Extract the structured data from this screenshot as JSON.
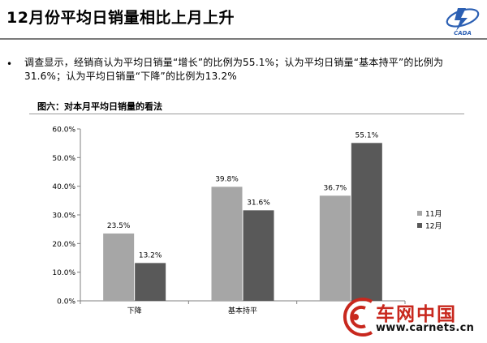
{
  "header": {
    "title": "12月份平均日销量相比上月上升"
  },
  "logo": {
    "text": "CADA"
  },
  "bullet": {
    "symbol": "•",
    "text": "调查显示，经销商认为平均日销量“增长”的比例为55.1%；认为平均日销量“基本持平”的比例为31.6%；认为平均日销量“下降”的比例为13.2%"
  },
  "chart_title": "图六：对本月平均日销量的看法",
  "chart_data": {
    "type": "bar",
    "categories": [
      "下降",
      "基本持平",
      ""
    ],
    "series": [
      {
        "name": "11月",
        "values": [
          23.5,
          39.8,
          36.7
        ],
        "labels": [
          "23.5%",
          "39.8%",
          "36.7%"
        ],
        "color": "#a6a6a6"
      },
      {
        "name": "12月",
        "values": [
          13.2,
          31.6,
          55.1
        ],
        "labels": [
          "13.2%",
          "31.6%",
          "55.1%"
        ],
        "color": "#595959"
      }
    ],
    "ylim": [
      0,
      60
    ],
    "yticks": [
      "0.0%",
      "10.0%",
      "20.0%",
      "30.0%",
      "40.0%",
      "50.0%",
      "60.0%"
    ],
    "grid": false,
    "legend": "right"
  },
  "watermark": {
    "name": "车网中国",
    "url": "www.carnets.cn",
    "color": "#c8281e"
  }
}
